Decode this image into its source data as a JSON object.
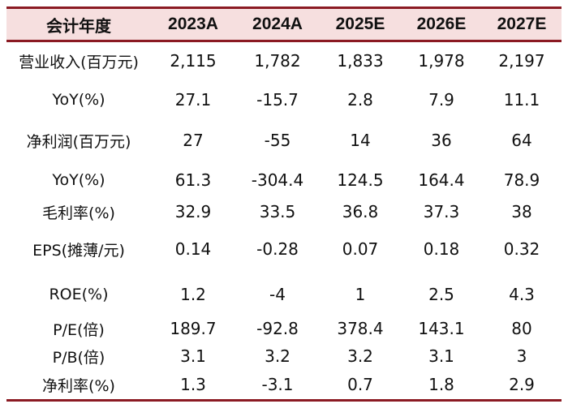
{
  "header": {
    "label": "会计年度",
    "years": [
      "2023A",
      "2024A",
      "2025E",
      "2026E",
      "2027E"
    ]
  },
  "rows": [
    {
      "label": "营业收入(百万元)",
      "values": [
        "2,115",
        "1,782",
        "1,833",
        "1,978",
        "2,197"
      ]
    },
    {
      "label": "YoY(%)",
      "values": [
        "27.1",
        "-15.7",
        "2.8",
        "7.9",
        "11.1"
      ]
    },
    {
      "label": "净利润(百万元)",
      "values": [
        "27",
        "-55",
        "14",
        "36",
        "64"
      ]
    },
    {
      "label": "YoY(%)",
      "values": [
        "61.3",
        "-304.4",
        "124.5",
        "164.4",
        "78.9"
      ]
    },
    {
      "label": "毛利率(%)",
      "values": [
        "32.9",
        "33.5",
        "36.8",
        "37.3",
        "38"
      ]
    },
    {
      "label": "EPS(摊薄/元)",
      "values": [
        "0.14",
        "-0.28",
        "0.07",
        "0.18",
        "0.32"
      ]
    },
    {
      "label": "ROE(%)",
      "values": [
        "1.2",
        "-4",
        "1",
        "2.5",
        "4.3"
      ]
    },
    {
      "label": "P/E(倍)",
      "values": [
        "189.7",
        "-92.8",
        "378.4",
        "143.1",
        "80"
      ]
    },
    {
      "label": "P/B(倍)",
      "values": [
        "3.1",
        "3.2",
        "3.2",
        "3.1",
        "3"
      ]
    },
    {
      "label": "净利率(%)",
      "values": [
        "1.3",
        "-3.1",
        "0.7",
        "1.8",
        "2.9"
      ]
    }
  ],
  "colors": {
    "rule": "#8b1a23",
    "header_bg": "#f6dfdf",
    "text": "#111111"
  }
}
